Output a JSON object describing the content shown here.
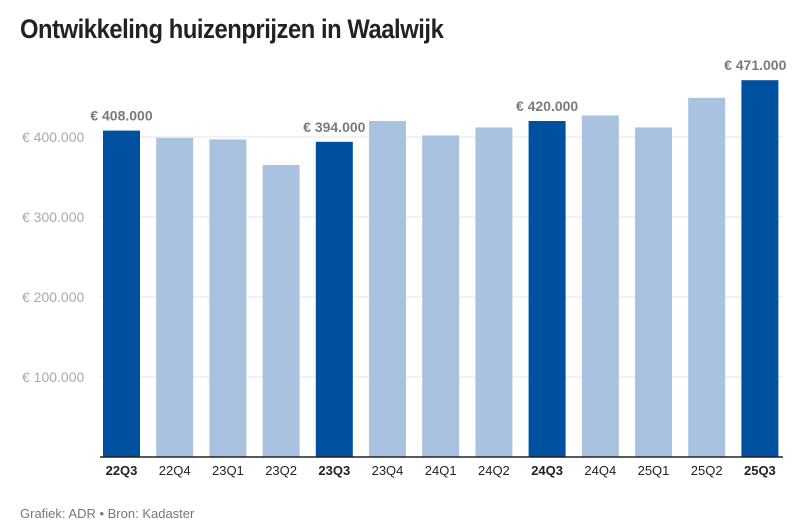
{
  "chart_data": {
    "type": "bar",
    "title": "Ontwikkeling huizenprijzen in Waalwijk",
    "categories": [
      "22Q3",
      "22Q4",
      "23Q1",
      "23Q2",
      "23Q3",
      "23Q4",
      "24Q1",
      "24Q2",
      "24Q3",
      "24Q4",
      "25Q1",
      "25Q2",
      "25Q3"
    ],
    "values": [
      408000,
      399000,
      397000,
      365000,
      394000,
      420000,
      402000,
      412000,
      420000,
      427000,
      412000,
      449000,
      471000
    ],
    "highlighted": [
      true,
      false,
      false,
      false,
      true,
      false,
      false,
      false,
      true,
      false,
      false,
      false,
      true
    ],
    "data_labels": {
      "0": "€ 408.000",
      "4": "€ 394.000",
      "8": "€ 420.000",
      "12": "€ 471.000"
    },
    "yticks": [
      100000,
      200000,
      300000,
      400000
    ],
    "ytick_labels": [
      "100.000",
      "200.000",
      "300.000",
      "400.000"
    ],
    "ytick_prefix": "€ ",
    "ylim": [
      0,
      500000
    ],
    "grid": true,
    "xlabel": "",
    "ylabel": "",
    "colors": {
      "highlight": "#0050a0",
      "normal": "#a8c2e0",
      "label": "#7a7a7a",
      "axis": "#222222"
    }
  },
  "footer": "Grafiek: ADR • Bron: Kadaster"
}
